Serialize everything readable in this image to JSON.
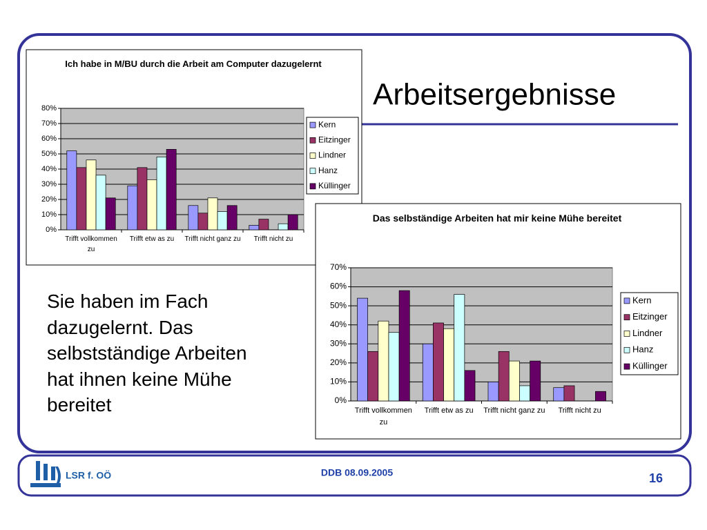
{
  "slide": {
    "title": "Arbeitsergebnisse",
    "text": "Sie haben im Fach dazugelernt. Das selbstständige Arbeiten hat ihnen keine Mühe bereitet",
    "footer": {
      "left": "LSR f. OÖ",
      "center": "DDB 08.09.2005",
      "page": "16"
    }
  },
  "chart_data": [
    {
      "type": "bar",
      "title": "Ich habe in M/BU durch die Arbeit am Computer dazugelernt",
      "categories": [
        "Trifft vollkommen zu",
        "Trifft etw as zu",
        "Trifft nicht ganz zu",
        "Trifft nicht zu"
      ],
      "series": [
        {
          "name": "Kern",
          "color": "#9999ff",
          "values": [
            52,
            29,
            16,
            3
          ]
        },
        {
          "name": "Eitzinger",
          "color": "#993366",
          "values": [
            41,
            41,
            11,
            7
          ]
        },
        {
          "name": "Lindner",
          "color": "#ffffcc",
          "values": [
            46,
            33,
            21,
            0
          ]
        },
        {
          "name": "Hanz",
          "color": "#ccffff",
          "values": [
            36,
            48,
            12,
            4
          ]
        },
        {
          "name": "Küllinger",
          "color": "#660066",
          "values": [
            21,
            53,
            16,
            10
          ]
        }
      ],
      "ylim": [
        0,
        80
      ],
      "yticks": [
        {
          "value": 0,
          "label": "0%"
        },
        {
          "value": 10,
          "label": "10%"
        },
        {
          "value": 20,
          "label": "20%"
        },
        {
          "value": 30,
          "label": "30%"
        },
        {
          "value": 40,
          "label": "40%"
        },
        {
          "value": 50,
          "label": "50%"
        },
        {
          "value": 60,
          "label": "60%"
        },
        {
          "value": 70,
          "label": "70%"
        },
        {
          "value": 80,
          "label": "80%"
        }
      ],
      "grid": true,
      "legend": "right",
      "plot_color": "#c0c0c0"
    },
    {
      "type": "bar",
      "title": "Das selbständige Arbeiten hat mir keine Mühe bereitet",
      "categories": [
        "Trifft vollkommen zu",
        "Trifft etw as zu",
        "Trifft nicht ganz zu",
        "Trifft nicht zu"
      ],
      "series": [
        {
          "name": "Kern",
          "color": "#9999ff",
          "values": [
            54,
            30,
            10,
            7
          ]
        },
        {
          "name": "Eitzinger",
          "color": "#993366",
          "values": [
            26,
            41,
            26,
            8
          ]
        },
        {
          "name": "Lindner",
          "color": "#ffffcc",
          "values": [
            42,
            38,
            21,
            0
          ]
        },
        {
          "name": "Hanz",
          "color": "#ccffff",
          "values": [
            36,
            56,
            8,
            0
          ]
        },
        {
          "name": "Küllinger",
          "color": "#660066",
          "values": [
            58,
            16,
            21,
            5
          ]
        }
      ],
      "ylim": [
        0,
        70
      ],
      "yticks": [
        {
          "value": 0,
          "label": "0%"
        },
        {
          "value": 10,
          "label": "10%"
        },
        {
          "value": 20,
          "label": "20%"
        },
        {
          "value": 30,
          "label": "30%"
        },
        {
          "value": 40,
          "label": "40%"
        },
        {
          "value": 50,
          "label": "50%"
        },
        {
          "value": 60,
          "label": "60%"
        },
        {
          "value": 70,
          "label": "70%"
        }
      ],
      "grid": true,
      "legend": "right",
      "plot_color": "#c0c0c0"
    }
  ]
}
